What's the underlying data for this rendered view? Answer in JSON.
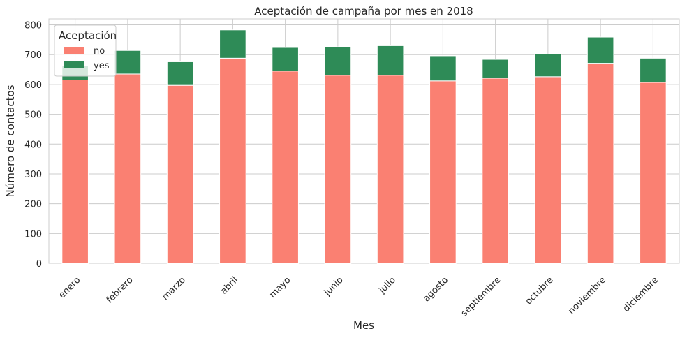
{
  "chart_data": {
    "type": "bar",
    "stacked": true,
    "title": "Aceptación de campaña por mes en 2018",
    "xlabel": "Mes",
    "ylabel": "Número de contactos",
    "ylim": [
      0,
      820
    ],
    "yticks": [
      0,
      100,
      200,
      300,
      400,
      500,
      600,
      700,
      800
    ],
    "grid": true,
    "legend": {
      "title": "Aceptación",
      "position": "top-left"
    },
    "categories": [
      "enero",
      "febrero",
      "marzo",
      "abril",
      "mayo",
      "junio",
      "julio",
      "agosto",
      "septiembre",
      "octubre",
      "noviembre",
      "diciembre"
    ],
    "series": [
      {
        "name": "no",
        "color": "#fa8072",
        "values": [
          615,
          635,
          597,
          688,
          645,
          631,
          631,
          612,
          621,
          626,
          671,
          607
        ]
      },
      {
        "name": "yes",
        "color": "#2e8b57",
        "values": [
          47,
          79,
          79,
          95,
          79,
          95,
          99,
          84,
          63,
          76,
          88,
          81
        ]
      }
    ]
  }
}
